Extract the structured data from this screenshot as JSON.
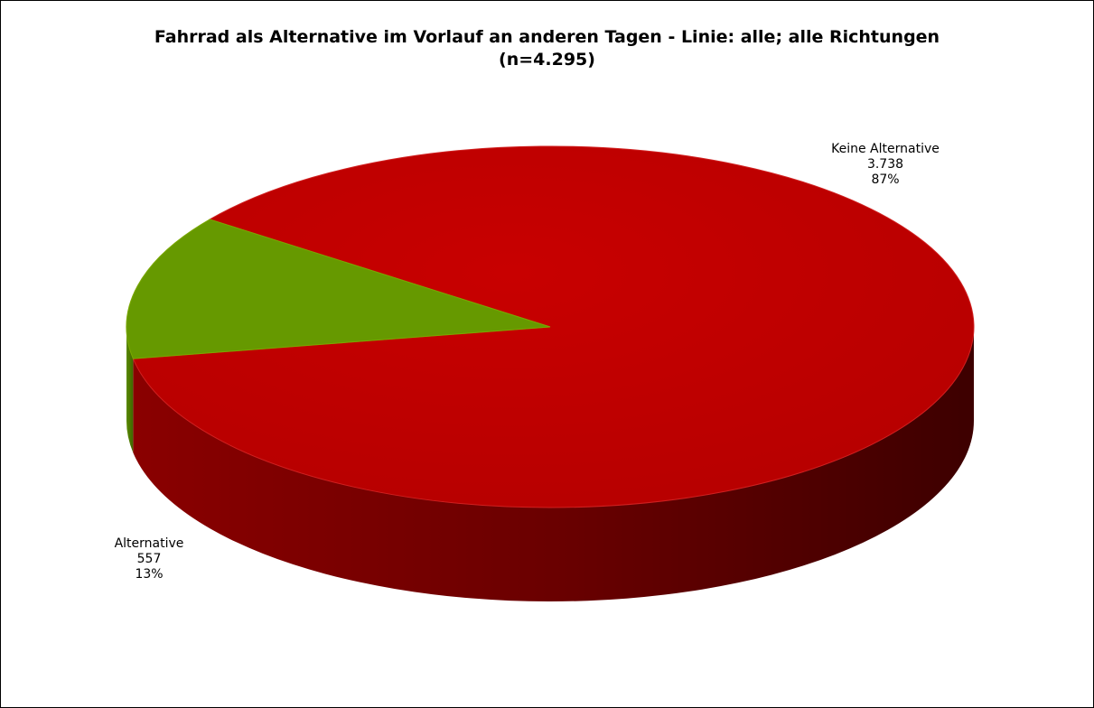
{
  "chart_data": {
    "type": "pie",
    "style": "3d",
    "title": "Fahrrad als Alternative im Vorlauf an anderen Tagen - Linie: alle; alle Richtungen",
    "subtitle": "(n=4.295)",
    "slices": [
      {
        "label": "Keine Alternative",
        "value": 3738,
        "value_text": "3.738",
        "percent_text": "87%",
        "color": "#c00000"
      },
      {
        "label": "Alternative",
        "value": 557,
        "value_text": "557",
        "percent_text": "13%",
        "color": "#669900"
      }
    ]
  }
}
